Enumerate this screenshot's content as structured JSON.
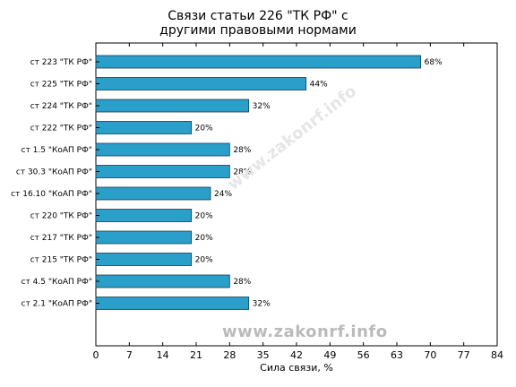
{
  "chart_data": {
    "type": "bar",
    "orientation": "horizontal",
    "title_lines": [
      "Связи статьи 226 \"ТК РФ\" с",
      "другими правовыми нормами"
    ],
    "categories": [
      "ст 223 \"ТК РФ\"",
      "ст 225 \"ТК РФ\"",
      "ст 224 \"ТК РФ\"",
      "ст 222 \"ТК РФ\"",
      "ст 1.5 \"КоАП РФ\"",
      "ст 30.3 \"КоАП РФ\"",
      "ст 16.10 \"КоАП РФ\"",
      "ст 220 \"ТК РФ\"",
      "ст 217 \"ТК РФ\"",
      "ст 215 \"ТК РФ\"",
      "ст 4.5 \"КоАП РФ\"",
      "ст 2.1 \"КоАП РФ\""
    ],
    "values": [
      68,
      44,
      32,
      20,
      28,
      28,
      24,
      20,
      20,
      20,
      28,
      32
    ],
    "value_labels": [
      "68%",
      "44%",
      "32%",
      "20%",
      "28%",
      "28%",
      "24%",
      "20%",
      "20%",
      "20%",
      "28%",
      "32%"
    ],
    "xlabel": "Сила связи, %",
    "xlim": [
      0,
      84
    ],
    "xticks": [
      "0",
      "7",
      "14",
      "21",
      "28",
      "35",
      "42",
      "49",
      "56",
      "63",
      "70",
      "77",
      "84"
    ],
    "grid": false,
    "bar_color": "#2a9fc9"
  },
  "watermark": "www.zakonrf.info"
}
